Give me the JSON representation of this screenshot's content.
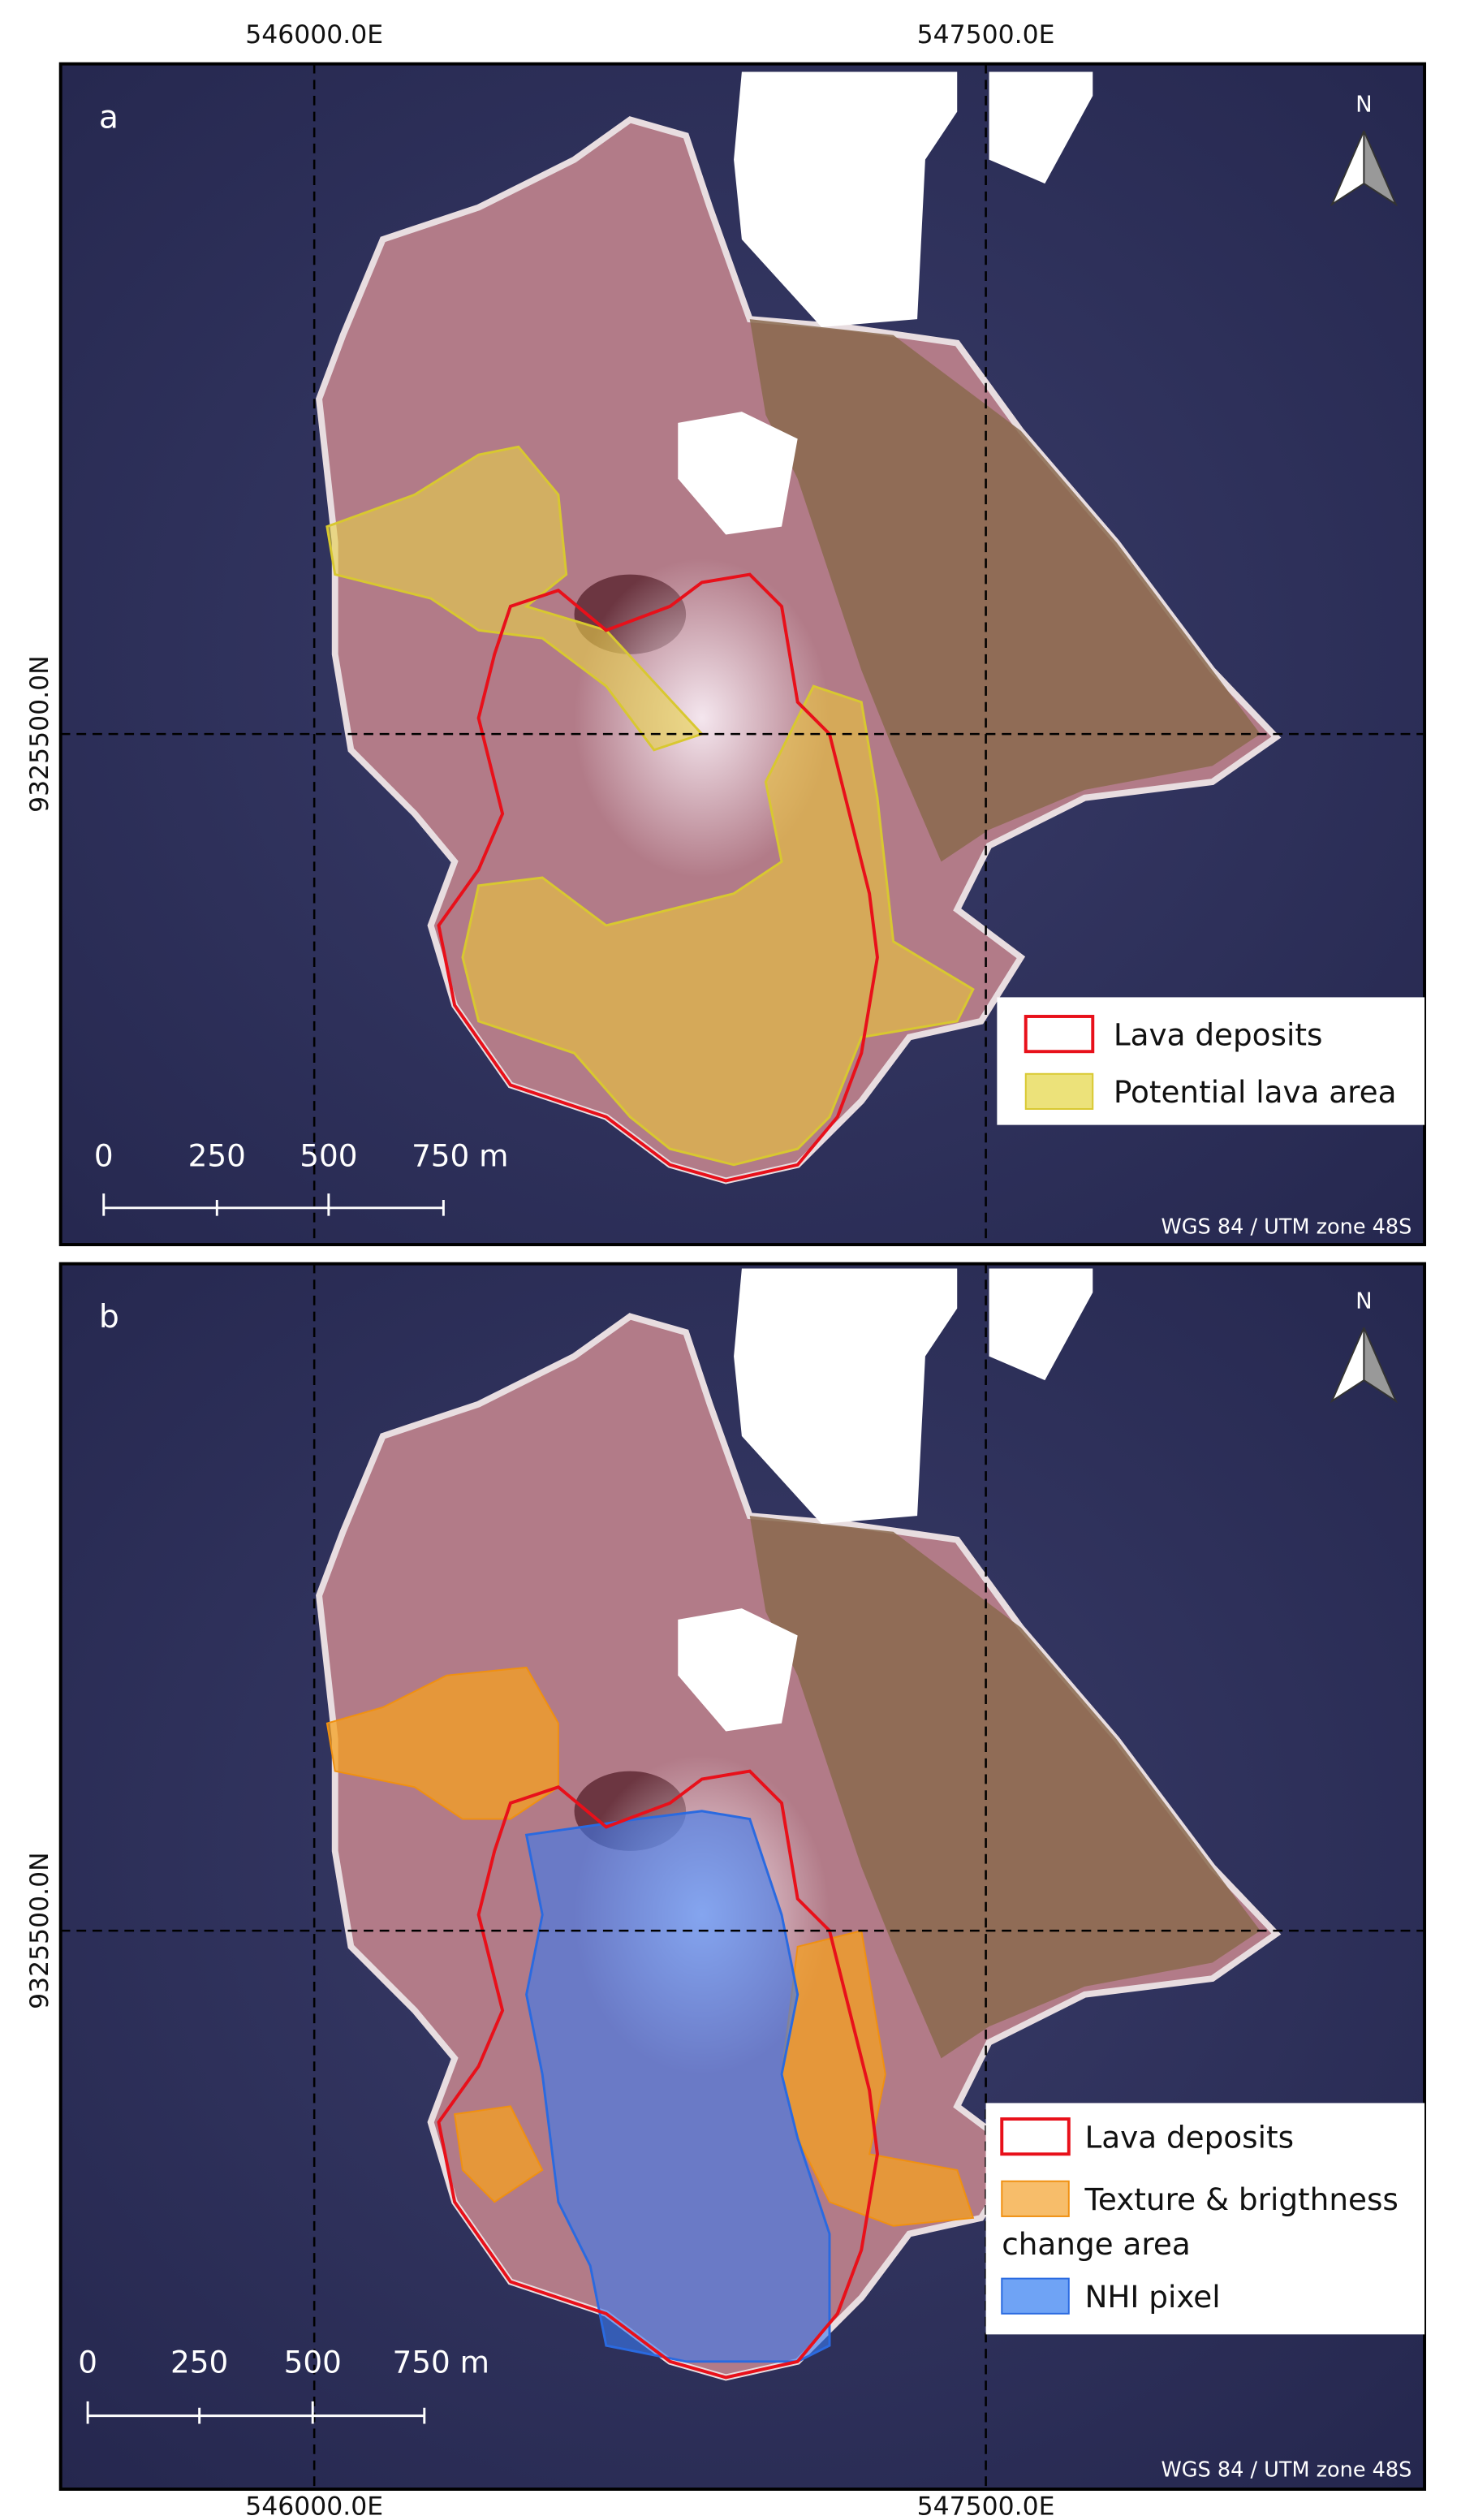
{
  "map": {
    "x_labels_top": [
      "546000.0E",
      "547500.0E"
    ],
    "x_labels_bottom": [
      "546000.0E",
      "547500.0E"
    ],
    "panels": [
      {
        "label": "a",
        "y_label": "9325500.0N",
        "north": "N",
        "legend": [
          [
            "Lava deposits"
          ],
          [
            "Potential lava area"
          ]
        ],
        "scale_labels": [
          "0",
          "250",
          "500",
          "750 m"
        ],
        "crs": "WGS 84 / UTM zone 48S"
      },
      {
        "label": "b",
        "y_label": "9325500.0N",
        "north": "N",
        "legend": [
          [
            "Lava deposits"
          ],
          [
            "Texture & brigthness",
            "change area"
          ],
          [
            "NHI pixel"
          ]
        ],
        "scale_labels": [
          "0",
          "250",
          "500",
          "750 m"
        ],
        "crs": "WGS 84 / UTM zone 48S"
      }
    ]
  }
}
